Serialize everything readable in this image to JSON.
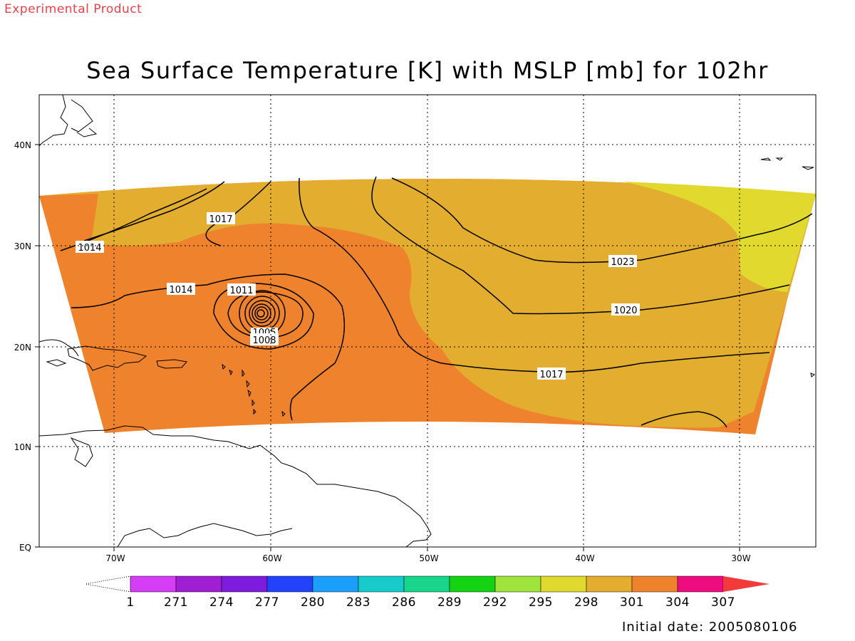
{
  "header": {
    "experimental_label": "Experimental Product",
    "title": "Sea Surface Temperature [K] with MSLP [mb] for 102hr",
    "initial_date": "Initial date: 2005080106"
  },
  "colors": {
    "experimental_text": "#e8414a",
    "sst_298": "#e2d92f",
    "sst_301": "#e3ad2f",
    "sst_304": "#ee822d",
    "contour": "#000000",
    "grid": "#000000"
  },
  "axes": {
    "x_ticks": [
      "70W",
      "60W",
      "50W",
      "40W",
      "30W"
    ],
    "y_ticks": [
      "EQ",
      "10N",
      "20N",
      "30N",
      "40N"
    ],
    "grid_lines": "dotted"
  },
  "isobar_labels": [
    {
      "name": "isobar-label-1017-north",
      "text": "1017"
    },
    {
      "name": "isobar-label-1014-west",
      "text": "1014"
    },
    {
      "name": "isobar-label-1014-center",
      "text": "1014"
    },
    {
      "name": "isobar-label-1011",
      "text": "1011"
    },
    {
      "name": "isobar-label-1005",
      "text": "1005"
    },
    {
      "name": "isobar-label-1008",
      "text": "1008"
    },
    {
      "name": "isobar-label-1023",
      "text": "1023"
    },
    {
      "name": "isobar-label-1020",
      "text": "1020"
    },
    {
      "name": "isobar-label-1017-south",
      "text": "1017"
    }
  ],
  "colorbar": {
    "labels": [
      "1",
      "271",
      "274",
      "277",
      "280",
      "283",
      "286",
      "289",
      "292",
      "295",
      "298",
      "301",
      "304",
      "307"
    ],
    "colors": [
      "#d63ef5",
      "#a11fd2",
      "#7e1cdd",
      "#2242fb",
      "#1aa0fc",
      "#18cbcb",
      "#17d68b",
      "#13d313",
      "#9fe43a",
      "#e2d92f",
      "#e3ad2f",
      "#ee822d",
      "#ee0c80"
    ],
    "under_color": "#ffffff",
    "over_color": "#f33a3a"
  }
}
